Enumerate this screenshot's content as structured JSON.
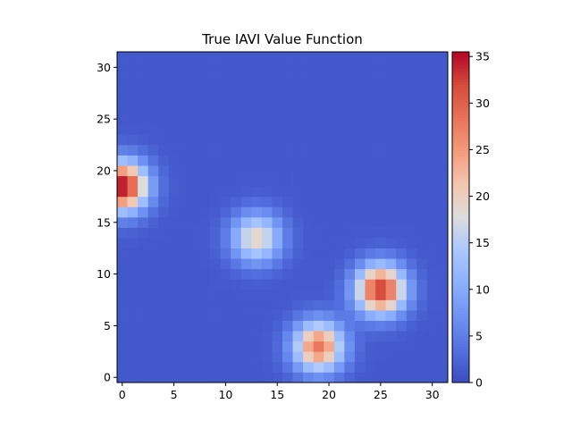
{
  "chart_data": {
    "type": "heatmap",
    "title": "True IAVI Value Function",
    "xlabel": "",
    "ylabel": "",
    "grid_size": [
      32,
      32
    ],
    "x_ticks": [
      "0",
      "5",
      "10",
      "15",
      "20",
      "25",
      "30"
    ],
    "y_ticks": [
      "0",
      "5",
      "10",
      "15",
      "20",
      "25",
      "30"
    ],
    "xlim": [
      -0.5,
      31.5
    ],
    "ylim": [
      -0.5,
      31.5
    ],
    "y_origin": "lower",
    "colormap": "coolwarm",
    "colorbar": {
      "min": 0,
      "max": 35.5,
      "ticks": [
        "0",
        "5",
        "10",
        "15",
        "20",
        "25",
        "30",
        "35"
      ]
    },
    "peaks": [
      {
        "x": 0.0,
        "y": 18.5,
        "value": 35.5
      },
      {
        "x": 13.0,
        "y": 13.5,
        "value": 19.5
      },
      {
        "x": 25.0,
        "y": 8.5,
        "value": 33.0
      },
      {
        "x": 19.0,
        "y": 3.0,
        "value": 28.0
      }
    ],
    "sigma": 1.7,
    "baseline": 1.2
  }
}
